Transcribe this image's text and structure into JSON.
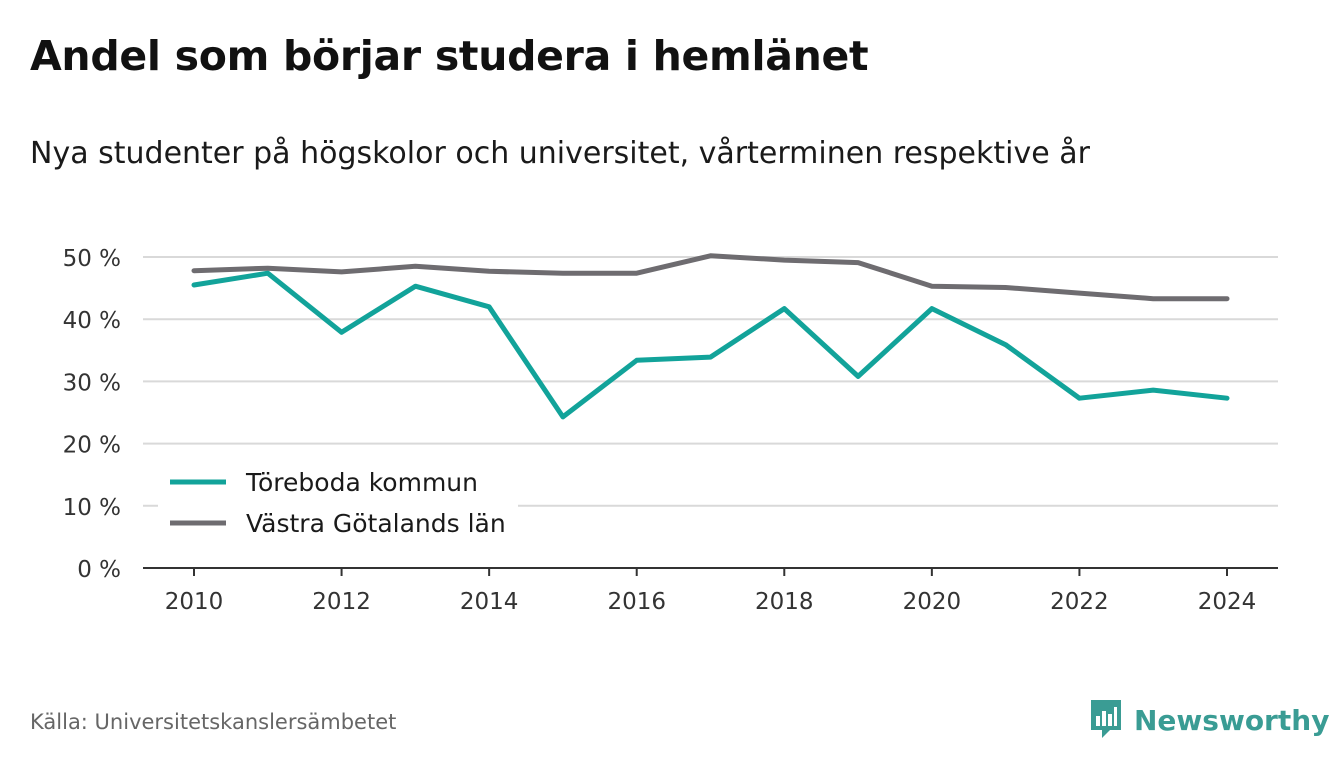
{
  "title": "Andel som börjar studera i hemlänet",
  "subtitle": "Nya studenter på högskolor och universitet, vårterminen respektive år",
  "source": "Källa: Universitetskanslersämbetet",
  "brand": "Newsworthy",
  "chart_data": {
    "type": "line",
    "x": [
      2010,
      2011,
      2012,
      2013,
      2014,
      2015,
      2016,
      2017,
      2018,
      2019,
      2020,
      2021,
      2022,
      2023,
      2024
    ],
    "xticks": [
      "2010",
      "2012",
      "2014",
      "2016",
      "2018",
      "2020",
      "2022",
      "2024"
    ],
    "yticks": [
      "0 %",
      "10 %",
      "20 %",
      "30 %",
      "40 %",
      "50 %"
    ],
    "ylim": [
      0,
      50
    ],
    "xlim": [
      2010,
      2024
    ],
    "grid": true,
    "legend_position": "bottom-left",
    "series": [
      {
        "name": "Töreboda kommun",
        "color": "#12a39a",
        "values": [
          45.5,
          47.4,
          37.9,
          45.3,
          42.0,
          24.3,
          33.4,
          33.9,
          41.7,
          30.8,
          41.7,
          35.9,
          27.3,
          28.6,
          27.3
        ]
      },
      {
        "name": "Västra Götalands län",
        "color": "#6e6c70",
        "values": [
          47.8,
          48.2,
          47.6,
          48.5,
          47.7,
          47.4,
          47.4,
          50.2,
          49.5,
          49.1,
          45.3,
          45.1,
          44.2,
          43.3,
          43.3
        ]
      }
    ]
  }
}
